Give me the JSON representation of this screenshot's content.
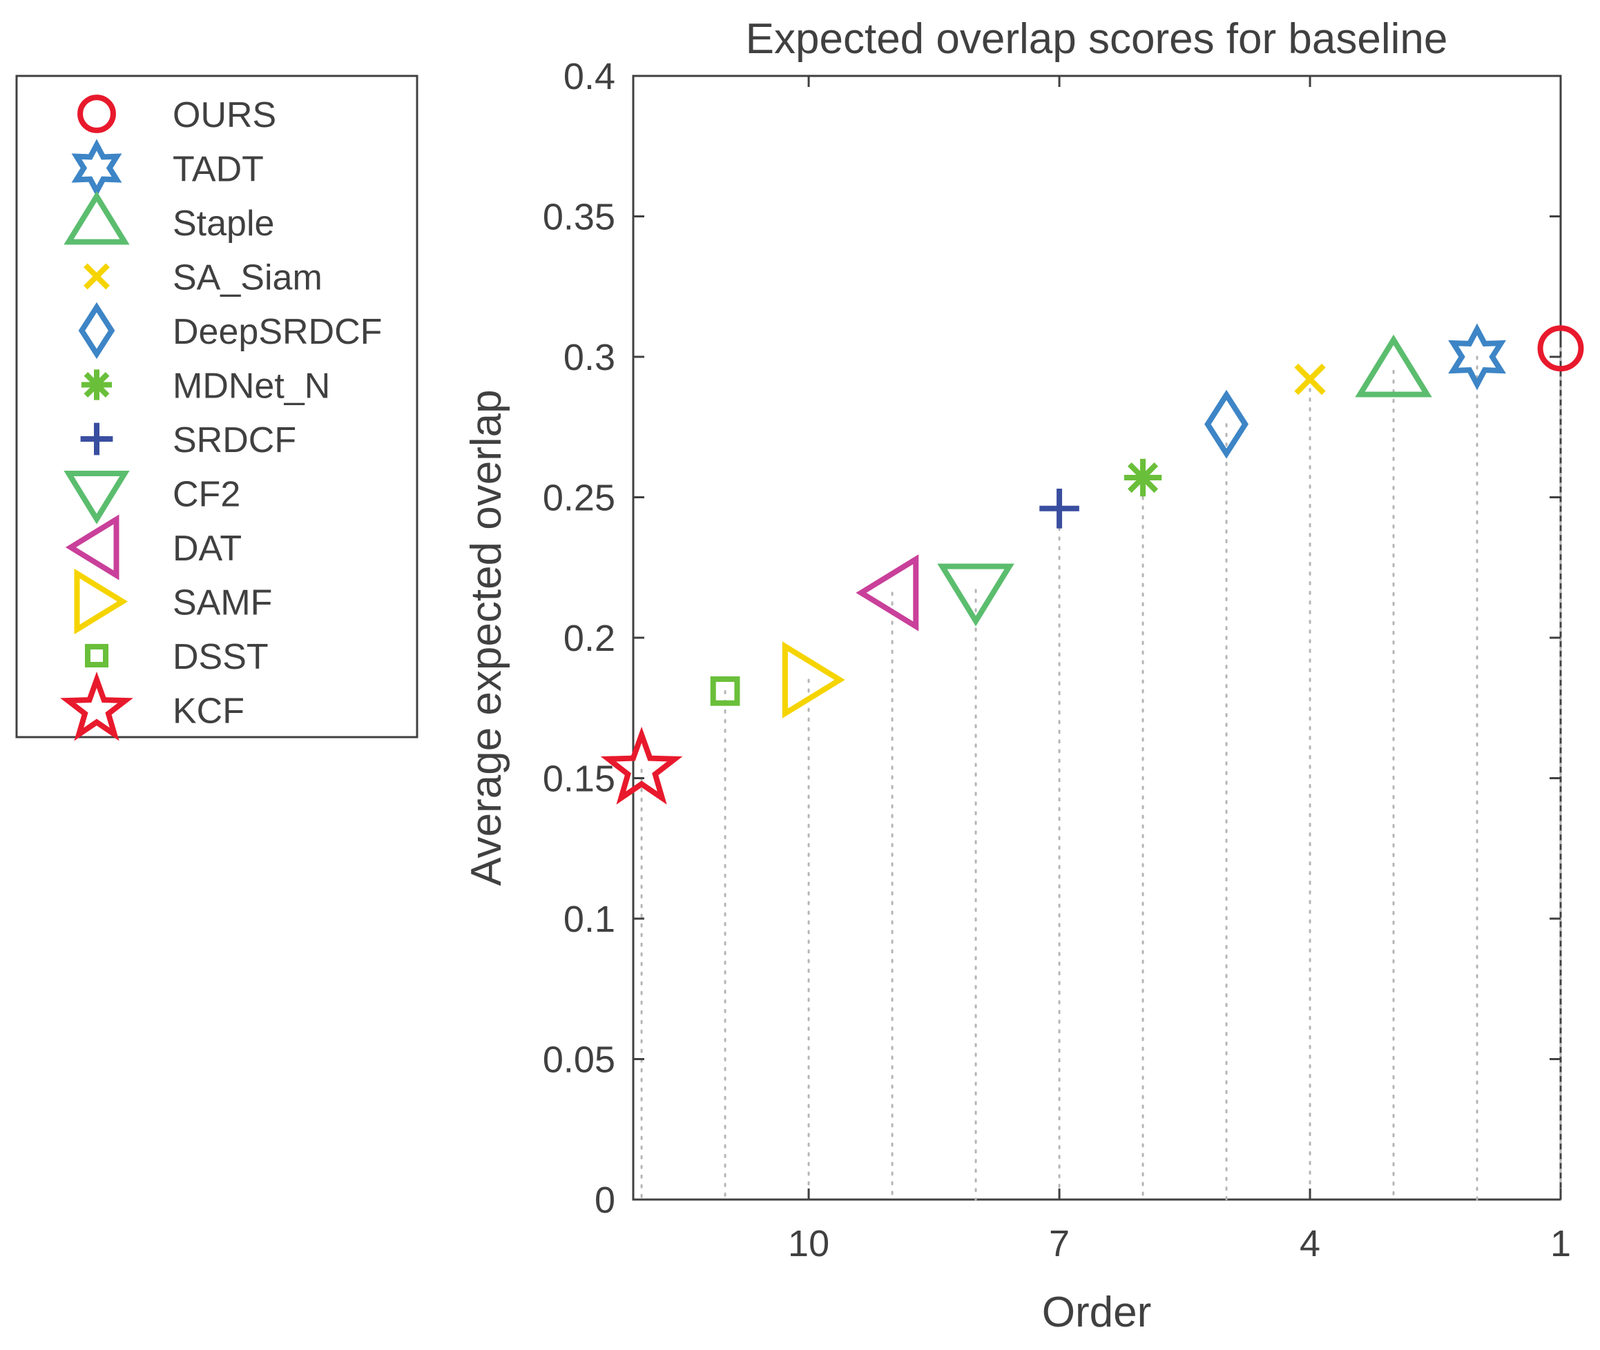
{
  "chart_data": {
    "type": "scatter",
    "title": "Expected overlap scores for baseline",
    "xlabel": "Order",
    "ylabel": "Average expected overlap",
    "xlim": [
      12.1,
      1
    ],
    "ylim": [
      0,
      0.4
    ],
    "xticks": [
      10,
      7,
      4,
      1
    ],
    "yticks": [
      0,
      0.05,
      0.1,
      0.15,
      0.2,
      0.25,
      0.3,
      0.35,
      0.4
    ],
    "ytick_labels": [
      "0",
      "0.05",
      "0.1",
      "0.15",
      "0.2",
      "0.25",
      "0.3",
      "0.35",
      "0.4"
    ],
    "xtick_labels": [
      "10",
      "7",
      "4",
      "1"
    ],
    "grid": "dotted vertical drop lines",
    "legend_position": "outside-left",
    "series": [
      {
        "name": "OURS",
        "order": 1,
        "value": 0.303,
        "marker": "circle",
        "color": "#e8192c"
      },
      {
        "name": "TADT",
        "order": 2,
        "value": 0.3,
        "marker": "hexagram",
        "color": "#3d85c6"
      },
      {
        "name": "Staple",
        "order": 3,
        "value": 0.295,
        "marker": "triangle-up",
        "color": "#5bbd6e"
      },
      {
        "name": "SA_Siam",
        "order": 4,
        "value": 0.292,
        "marker": "x",
        "color": "#f5d400"
      },
      {
        "name": "DeepSRDCF",
        "order": 5,
        "value": 0.276,
        "marker": "diamond",
        "color": "#3d85c6"
      },
      {
        "name": "MDNet_N",
        "order": 6,
        "value": 0.257,
        "marker": "asterisk",
        "color": "#6abf3a"
      },
      {
        "name": "SRDCF",
        "order": 7,
        "value": 0.246,
        "marker": "plus",
        "color": "#3a4ea0"
      },
      {
        "name": "CF2",
        "order": 8,
        "value": 0.217,
        "marker": "triangle-down",
        "color": "#5bbd6e"
      },
      {
        "name": "DAT",
        "order": 9,
        "value": 0.216,
        "marker": "triangle-left",
        "color": "#c9409a"
      },
      {
        "name": "SAMF",
        "order": 10,
        "value": 0.185,
        "marker": "triangle-right",
        "color": "#f5d400"
      },
      {
        "name": "DSST",
        "order": 11,
        "value": 0.181,
        "marker": "square",
        "color": "#6abf3a"
      },
      {
        "name": "KCF",
        "order": 12,
        "value": 0.153,
        "marker": "pentagram",
        "color": "#e8192c"
      }
    ]
  }
}
